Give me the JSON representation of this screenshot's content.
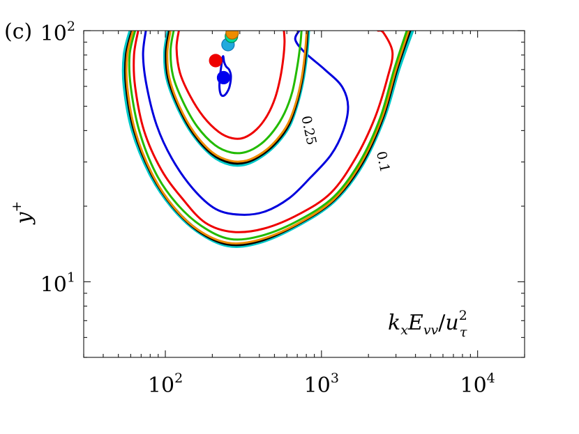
{
  "panel_label": "(c)",
  "chart_data": {
    "type": "contour",
    "x_scale": "log",
    "y_scale": "log",
    "xlim": [
      30,
      20000
    ],
    "ylim": [
      5,
      100
    ],
    "x_ticks": [
      {
        "value": 100,
        "base": "10",
        "exp": "2"
      },
      {
        "value": 1000,
        "base": "10",
        "exp": "3"
      },
      {
        "value": 10000,
        "base": "10",
        "exp": "4"
      }
    ],
    "y_ticks": [
      {
        "value": 10,
        "base": "10",
        "exp": "1"
      },
      {
        "value": 100,
        "base": "10",
        "exp": "2"
      }
    ],
    "ylabel_base": "y",
    "ylabel_sup": "+",
    "annotation": {
      "k": "k",
      "x": "x",
      "E": "E",
      "vv": "vv",
      "slash": "/",
      "u": "u",
      "two": "2",
      "tau": "τ"
    },
    "contour_labels": [
      {
        "text": "0.25",
        "x": 820,
        "y": 40
      },
      {
        "text": "0.1",
        "x": 2450,
        "y": 30
      }
    ],
    "series": [
      {
        "color": "#00c8c8",
        "width": 6,
        "level": 0.1,
        "points": [
          [
            60,
            100
          ],
          [
            55,
            80
          ],
          [
            55,
            60
          ],
          [
            62,
            40
          ],
          [
            80,
            27
          ],
          [
            110,
            20
          ],
          [
            160,
            16
          ],
          [
            250,
            14
          ],
          [
            400,
            14.4
          ],
          [
            700,
            16.8
          ],
          [
            1200,
            21
          ],
          [
            1800,
            29
          ],
          [
            2500,
            45
          ],
          [
            3100,
            70
          ],
          [
            3800,
            100
          ]
        ]
      },
      {
        "color": "#000000",
        "width": 3.2,
        "level": 0.1,
        "points": [
          [
            61,
            100
          ],
          [
            56,
            80
          ],
          [
            56,
            60
          ],
          [
            63,
            40
          ],
          [
            81,
            27
          ],
          [
            111,
            20
          ],
          [
            161,
            16
          ],
          [
            250,
            14.1
          ],
          [
            400,
            14.5
          ],
          [
            700,
            16.9
          ],
          [
            1200,
            21.1
          ],
          [
            1800,
            29.2
          ],
          [
            2480,
            45
          ],
          [
            3050,
            70
          ],
          [
            3700,
            100
          ]
        ]
      },
      {
        "color": "#ee8c00",
        "width": 3,
        "level": 0.1,
        "points": [
          [
            62,
            100
          ],
          [
            57,
            80
          ],
          [
            57,
            60
          ],
          [
            64,
            40
          ],
          [
            82,
            27
          ],
          [
            112,
            20
          ],
          [
            162,
            16.1
          ],
          [
            250,
            14.3
          ],
          [
            400,
            14.7
          ],
          [
            700,
            17
          ],
          [
            1200,
            21.3
          ],
          [
            1780,
            29.5
          ],
          [
            2440,
            45
          ],
          [
            3000,
            70
          ],
          [
            3620,
            100
          ]
        ]
      },
      {
        "color": "#22bb00",
        "width": 3,
        "level": 0.1,
        "points": [
          [
            64,
            100
          ],
          [
            59,
            80
          ],
          [
            60,
            60
          ],
          [
            68,
            40
          ],
          [
            87,
            27
          ],
          [
            118,
            20.5
          ],
          [
            170,
            16.7
          ],
          [
            260,
            14.8
          ],
          [
            420,
            15.3
          ],
          [
            720,
            17.6
          ],
          [
            1200,
            21.8
          ],
          [
            1760,
            30
          ],
          [
            2380,
            45
          ],
          [
            2920,
            70
          ],
          [
            3520,
            100
          ]
        ]
      },
      {
        "color": "#ee0000",
        "width": 3,
        "level": 0.1,
        "points": [
          [
            67,
            100
          ],
          [
            63,
            80
          ],
          [
            64,
            60
          ],
          [
            73,
            40
          ],
          [
            94,
            28
          ],
          [
            128,
            21.5
          ],
          [
            180,
            17.2
          ],
          [
            270,
            15.8
          ],
          [
            430,
            16.3
          ],
          [
            720,
            18.6
          ],
          [
            1150,
            22.6
          ],
          [
            1650,
            31
          ],
          [
            2200,
            45
          ],
          [
            2650,
            65
          ],
          [
            2850,
            82
          ],
          [
            2500,
            98
          ],
          [
            2300,
            100
          ]
        ]
      },
      {
        "color": "#0000dd",
        "width": 3,
        "level": 0.1,
        "points": [
          [
            75,
            100
          ],
          [
            72,
            80
          ],
          [
            76,
            60
          ],
          [
            88,
            42
          ],
          [
            110,
            31
          ],
          [
            150,
            23.5
          ],
          [
            210,
            19.5
          ],
          [
            300,
            18.5
          ],
          [
            430,
            19
          ],
          [
            620,
            21.5
          ],
          [
            850,
            26
          ],
          [
            1150,
            32
          ],
          [
            1380,
            40
          ],
          [
            1480,
            50
          ],
          [
            1350,
            60
          ],
          [
            1050,
            70
          ],
          [
            780,
            82
          ],
          [
            680,
            92
          ],
          [
            720,
            100
          ]
        ]
      },
      {
        "color": "#00c8c8",
        "width": 6,
        "level": 0.25,
        "points": [
          [
            105,
            100
          ],
          [
            100,
            82
          ],
          [
            103,
            65
          ],
          [
            120,
            50
          ],
          [
            150,
            39
          ],
          [
            200,
            32
          ],
          [
            260,
            29.5
          ],
          [
            330,
            29.6
          ],
          [
            420,
            32
          ],
          [
            520,
            36
          ],
          [
            620,
            42
          ],
          [
            700,
            52
          ],
          [
            760,
            65
          ],
          [
            800,
            82
          ],
          [
            820,
            100
          ]
        ]
      },
      {
        "color": "#000000",
        "width": 3.2,
        "level": 0.25,
        "points": [
          [
            106,
            100
          ],
          [
            101,
            82
          ],
          [
            104,
            65
          ],
          [
            121,
            50
          ],
          [
            151,
            39
          ],
          [
            200,
            32.2
          ],
          [
            260,
            29.8
          ],
          [
            330,
            29.9
          ],
          [
            420,
            32.2
          ],
          [
            520,
            36.2
          ],
          [
            618,
            42.2
          ],
          [
            698,
            52
          ],
          [
            757,
            65
          ],
          [
            796,
            82
          ],
          [
            815,
            100
          ]
        ]
      },
      {
        "color": "#ee8c00",
        "width": 3,
        "level": 0.25,
        "points": [
          [
            108,
            100
          ],
          [
            103,
            82
          ],
          [
            106,
            65
          ],
          [
            123,
            50
          ],
          [
            153,
            39.3
          ],
          [
            202,
            32.6
          ],
          [
            262,
            30.3
          ],
          [
            332,
            30.4
          ],
          [
            420,
            32.7
          ],
          [
            515,
            36.7
          ],
          [
            610,
            42.6
          ],
          [
            690,
            52.2
          ],
          [
            748,
            65
          ],
          [
            785,
            82
          ],
          [
            805,
            100
          ]
        ]
      },
      {
        "color": "#22bb00",
        "width": 3,
        "level": 0.25,
        "points": [
          [
            113,
            100
          ],
          [
            108,
            83
          ],
          [
            112,
            66
          ],
          [
            130,
            52
          ],
          [
            160,
            41.5
          ],
          [
            208,
            35
          ],
          [
            265,
            32.7
          ],
          [
            330,
            32.9
          ],
          [
            410,
            35.4
          ],
          [
            495,
            40
          ],
          [
            580,
            47
          ],
          [
            650,
            57
          ],
          [
            700,
            72
          ],
          [
            732,
            88
          ],
          [
            745,
            100
          ]
        ]
      },
      {
        "color": "#ee0000",
        "width": 3,
        "level": 0.25,
        "points": [
          [
            122,
            100
          ],
          [
            118,
            85
          ],
          [
            124,
            68
          ],
          [
            144,
            55
          ],
          [
            175,
            45.5
          ],
          [
            220,
            39.5
          ],
          [
            268,
            37.3
          ],
          [
            320,
            37.5
          ],
          [
            385,
            40.5
          ],
          [
            450,
            46
          ],
          [
            505,
            54
          ],
          [
            545,
            65
          ],
          [
            570,
            78
          ],
          [
            580,
            90
          ],
          [
            575,
            100
          ]
        ]
      },
      {
        "color": "#0000dd",
        "width": 3,
        "level": 0.4,
        "points": [
          [
            232,
            78
          ],
          [
            228,
            72
          ],
          [
            224,
            66
          ],
          [
            222,
            60
          ],
          [
            226,
            56
          ],
          [
            235,
            55
          ],
          [
            247,
            56.5
          ],
          [
            258,
            60
          ],
          [
            263,
            66
          ],
          [
            256,
            70
          ],
          [
            245,
            72
          ],
          [
            238,
            75
          ],
          [
            235,
            79
          ],
          [
            232,
            78
          ]
        ]
      }
    ],
    "markers": [
      {
        "x": 236,
        "y": 65,
        "color": "#0000ee",
        "edge": "#0000ee"
      },
      {
        "x": 210,
        "y": 76,
        "color": "#ee0000",
        "edge": "#ee0000"
      },
      {
        "x": 252,
        "y": 88,
        "color": "#22aadd",
        "edge": "#1177bb"
      },
      {
        "x": 265,
        "y": 95,
        "color": "#00dd99",
        "edge": "#008855"
      },
      {
        "x": 268,
        "y": 98,
        "color": "#ee8c00",
        "edge": "#aa6600"
      }
    ]
  }
}
